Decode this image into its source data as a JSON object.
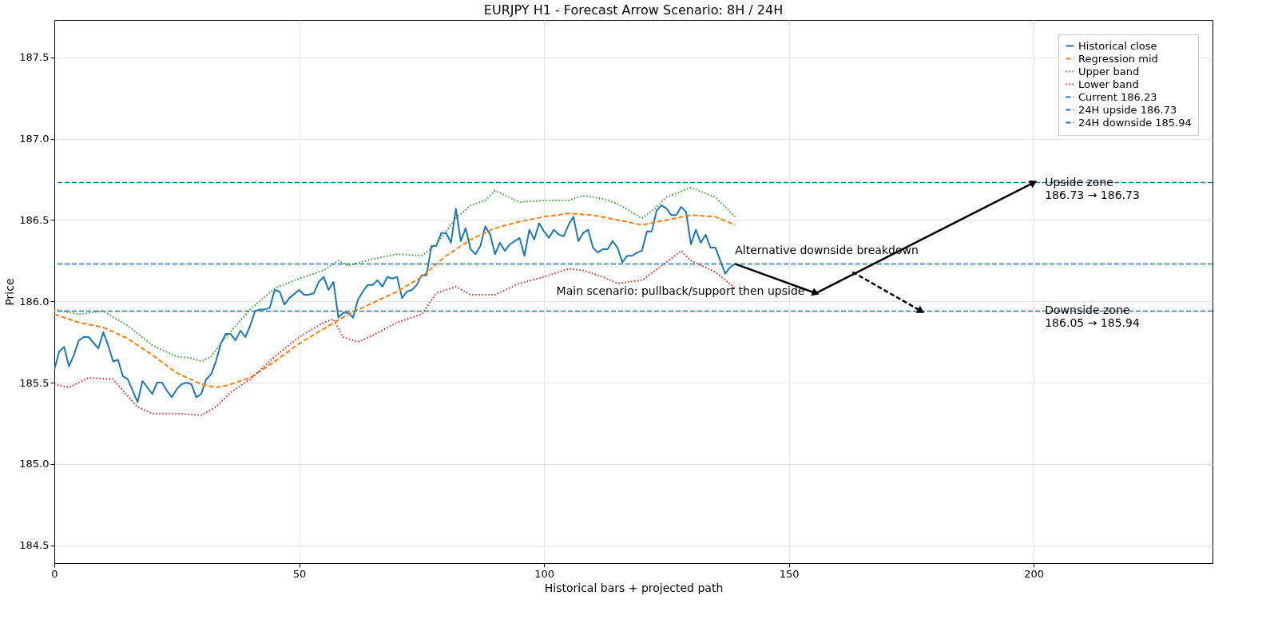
{
  "chart_data": {
    "type": "line",
    "title": "EURJPY H1 - Forecast Arrow Scenario: 8H / 24H",
    "xlabel": "Historical bars + projected path",
    "ylabel": "Price",
    "xlim": [
      0,
      236.5
    ],
    "ylim": [
      184.39,
      187.73
    ],
    "xticks": [
      0,
      50,
      100,
      150,
      200
    ],
    "yticks": [
      184.5,
      {
        "value": 185,
        "label": "185.0"
      },
      185.5,
      {
        "value": 186,
        "label": "186.0"
      },
      186.5,
      {
        "value": 187,
        "label": "187.0"
      },
      187.5
    ],
    "grid": true,
    "legend": "top right",
    "series": [
      {
        "name": "Historical close",
        "color": "#1f77b4",
        "line_style": "solid",
        "x": [
          0,
          1,
          2,
          3,
          4,
          5,
          6,
          7,
          9,
          10,
          11,
          12,
          13,
          14,
          15,
          16,
          17,
          18,
          20,
          21,
          22,
          23,
          24,
          25,
          26,
          27,
          28,
          29,
          30,
          31,
          32,
          33,
          34,
          35,
          36,
          37,
          38,
          39,
          40,
          41,
          42,
          43,
          44,
          45,
          46,
          47,
          48,
          50,
          51,
          52,
          53,
          54,
          55,
          56,
          57,
          58,
          59,
          60,
          61,
          62,
          63,
          64,
          65,
          66,
          67,
          68,
          69,
          70,
          71,
          72,
          73,
          74,
          75,
          76,
          77,
          78,
          79,
          80,
          81,
          82,
          83,
          84,
          85,
          86,
          87,
          88,
          89,
          90,
          91,
          92,
          93,
          95,
          96,
          97,
          98,
          99,
          100,
          101,
          102,
          103,
          104,
          105,
          106,
          107,
          108,
          109,
          110,
          111,
          112,
          113,
          114,
          115,
          116,
          117,
          118,
          119,
          120,
          121,
          122,
          123,
          124,
          125,
          126,
          127,
          128,
          129,
          130,
          131,
          132,
          133,
          134,
          135,
          136,
          137,
          138,
          139
        ],
        "values": [
          185.58,
          185.69,
          185.72,
          185.6,
          185.67,
          185.76,
          185.78,
          185.78,
          185.71,
          185.81,
          185.73,
          185.63,
          185.64,
          185.54,
          185.52,
          185.45,
          185.38,
          185.51,
          185.43,
          185.5,
          185.5,
          185.45,
          185.41,
          185.46,
          185.49,
          185.5,
          185.49,
          185.41,
          185.43,
          185.52,
          185.55,
          185.63,
          185.74,
          185.8,
          185.8,
          185.76,
          185.82,
          185.78,
          185.85,
          185.94,
          185.95,
          185.95,
          185.96,
          186.07,
          186.06,
          185.98,
          186.02,
          186.07,
          186.04,
          186.04,
          186.05,
          186.12,
          186.15,
          186.07,
          186.12,
          185.9,
          185.93,
          185.93,
          185.9,
          186.01,
          186.06,
          186.1,
          186.1,
          186.13,
          186.09,
          186.15,
          186.14,
          186.15,
          186.02,
          186.06,
          186.07,
          186.1,
          186.16,
          186.16,
          186.34,
          186.34,
          186.42,
          186.42,
          186.36,
          186.57,
          186.37,
          186.45,
          186.32,
          186.29,
          186.34,
          186.46,
          186.41,
          186.29,
          186.36,
          186.31,
          186.35,
          186.39,
          186.28,
          186.44,
          186.38,
          186.48,
          186.43,
          186.39,
          186.44,
          186.41,
          186.4,
          186.47,
          186.52,
          186.37,
          186.42,
          186.44,
          186.33,
          186.3,
          186.32,
          186.32,
          186.37,
          186.33,
          186.24,
          186.28,
          186.28,
          186.3,
          186.31,
          186.43,
          186.43,
          186.56,
          186.59,
          186.57,
          186.53,
          186.53,
          186.58,
          186.55,
          186.35,
          186.44,
          186.36,
          186.41,
          186.33,
          186.33,
          186.25,
          186.17,
          186.21,
          186.23
        ]
      },
      {
        "name": "Regression mid",
        "color": "#ff7f0e",
        "line_style": "dashed",
        "x": [
          0,
          5,
          10,
          15,
          20,
          25,
          30,
          33,
          35,
          40,
          45,
          50,
          55,
          60,
          65,
          70,
          75,
          80,
          85,
          90,
          95,
          100,
          105,
          110,
          115,
          120,
          125,
          130,
          135,
          139
        ],
        "values": [
          185.92,
          185.87,
          185.84,
          185.77,
          185.67,
          185.56,
          185.49,
          185.47,
          185.48,
          185.53,
          185.63,
          185.74,
          185.83,
          185.92,
          185.99,
          186.06,
          186.15,
          186.28,
          186.38,
          186.45,
          186.49,
          186.52,
          186.54,
          186.53,
          186.5,
          186.47,
          186.5,
          186.53,
          186.52,
          186.47
        ]
      },
      {
        "name": "Upper band",
        "color": "#2ca02c",
        "line_style": "dotted",
        "x": [
          0,
          5,
          10,
          15,
          20,
          25,
          28,
          30,
          32,
          35,
          40,
          45,
          50,
          55,
          58,
          60,
          65,
          70,
          75,
          78,
          82,
          85,
          88,
          90,
          95,
          100,
          105,
          108,
          112,
          115,
          120,
          123,
          125,
          130,
          135,
          139
        ],
        "values": [
          185.95,
          185.92,
          185.94,
          185.85,
          185.73,
          185.66,
          185.65,
          185.63,
          185.66,
          185.78,
          185.95,
          186.08,
          186.14,
          186.19,
          186.25,
          186.22,
          186.26,
          186.29,
          186.28,
          186.35,
          186.51,
          186.59,
          186.62,
          186.68,
          186.61,
          186.62,
          186.62,
          186.65,
          186.63,
          186.6,
          186.51,
          186.58,
          186.64,
          186.7,
          186.64,
          186.52
        ]
      },
      {
        "name": "Lower band",
        "color": "#d62728",
        "line_style": "dotted",
        "x": [
          0,
          3,
          7,
          12,
          17,
          20,
          25,
          30,
          33,
          36,
          40,
          45,
          50,
          55,
          57,
          59,
          62,
          65,
          70,
          75,
          78,
          82,
          85,
          90,
          95,
          100,
          105,
          108,
          112,
          115,
          120,
          125,
          128,
          130,
          135,
          139
        ],
        "values": [
          185.49,
          185.47,
          185.53,
          185.52,
          185.35,
          185.31,
          185.31,
          185.3,
          185.35,
          185.44,
          185.52,
          185.66,
          185.78,
          185.87,
          185.89,
          185.78,
          185.75,
          185.79,
          185.87,
          185.92,
          186.05,
          186.09,
          186.04,
          186.04,
          186.11,
          186.15,
          186.2,
          186.19,
          186.15,
          186.11,
          186.13,
          186.24,
          186.31,
          186.25,
          186.18,
          186.08
        ]
      },
      {
        "color": "#000000",
        "line_style": "solid",
        "x": [
          139,
          155.5
        ],
        "values": [
          186.23,
          186.05
        ]
      },
      {
        "color": "#000000",
        "line_style": "solid",
        "x": [
          155.5,
          200
        ],
        "values": [
          186.05,
          186.73
        ]
      },
      {
        "color": "#000000",
        "line_style": "dashed",
        "x": [
          163,
          177
        ],
        "values": [
          186.18,
          185.94
        ]
      }
    ],
    "ref_lines": [
      {
        "axis": "y",
        "value": 186.23,
        "label": "Current 186.23",
        "color": "#1f77b4",
        "line_style": "dashed"
      },
      {
        "axis": "y",
        "value": 186.73,
        "label": "24H upside 186.73",
        "color": "#1f77b4",
        "line_style": "dashed"
      },
      {
        "axis": "y",
        "value": 185.94,
        "label": "24H downside 185.94",
        "color": "#1f77b4",
        "line_style": "dashed"
      }
    ],
    "annotations": [
      "Main scenario: pullback/support then upside",
      "Alternative downside breakdown",
      "Upside zone\n186.73 → 186.73",
      "Downside zone\n186.05 → 185.94"
    ]
  }
}
